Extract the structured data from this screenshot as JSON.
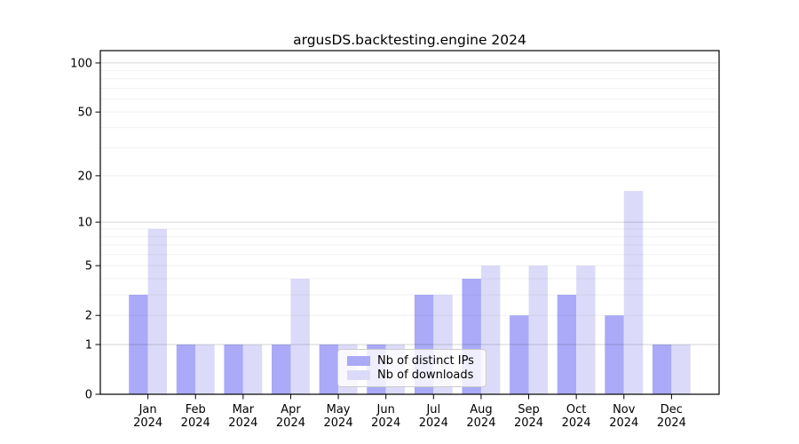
{
  "title": "argusDS.backtesting.engine 2024",
  "chart_data": {
    "type": "bar",
    "title": "argusDS.backtesting.engine 2024",
    "categories": [
      "Jan",
      "Feb",
      "Mar",
      "Apr",
      "May",
      "Jun",
      "Jul",
      "Aug",
      "Sep",
      "Oct",
      "Nov",
      "Dec"
    ],
    "year_label": "2024",
    "series": [
      {
        "name": "Nb of distinct IPs",
        "color": "#aaaaf8",
        "values": [
          3,
          1,
          1,
          1,
          1,
          1,
          3,
          4,
          2,
          3,
          2,
          1
        ]
      },
      {
        "name": "Nb of downloads",
        "color": "#dbdbf9",
        "values": [
          9,
          1,
          1,
          4,
          1,
          1,
          3,
          5,
          5,
          5,
          16,
          1
        ]
      }
    ],
    "y_scale": "log1p",
    "y_ticks": [
      0,
      1,
      2,
      5,
      10,
      20,
      50,
      100
    ],
    "y_minor_gridlines": [
      2,
      3,
      4,
      5,
      6,
      7,
      8,
      9,
      20,
      30,
      40,
      50,
      60,
      70,
      80,
      90
    ],
    "y_major_gridlines": [
      1,
      10,
      100
    ],
    "ylim": [
      0,
      119
    ],
    "grid": true,
    "legend_position": "inside lower center",
    "xlabel": "",
    "ylabel": ""
  },
  "legend": {
    "items": [
      {
        "label": "Nb of distinct IPs",
        "color": "#aaaaf8"
      },
      {
        "label": "Nb of downloads",
        "color": "#dbdbf9"
      }
    ]
  }
}
